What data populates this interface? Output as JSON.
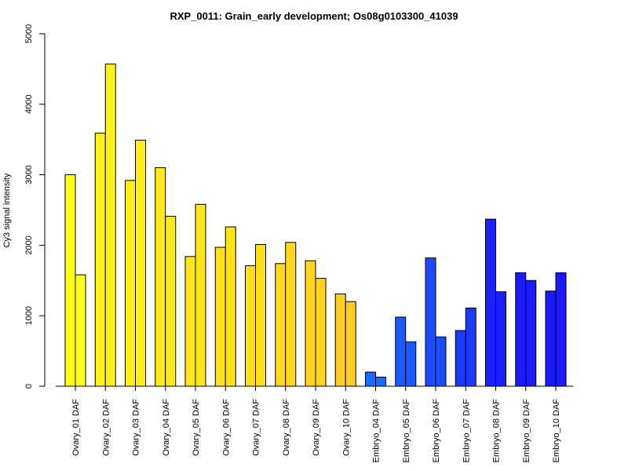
{
  "chart_data": {
    "type": "bar",
    "title": "RXP_0011: Grain_early development; Os08g0103300_41039",
    "ylabel": "Cy3 signal intensity",
    "xlabel": "",
    "ylim": [
      0,
      5000
    ],
    "yticks": [
      0,
      1000,
      2000,
      3000,
      4000,
      5000
    ],
    "grid": false,
    "categories": [
      "Ovary_01 DAF",
      "Ovary_02 DAF",
      "Ovary_03 DAF",
      "Ovary_04 DAF",
      "Ovary_05 DAF",
      "Ovary_06 DAF",
      "Ovary_07 DAF",
      "Ovary_08 DAF",
      "Ovary_09 DAF",
      "Ovary_10 DAF",
      "Embryo_04 DAF",
      "Embryo_05 DAF",
      "Embryo_06 DAF",
      "Embryo_07 DAF",
      "Embryo_08 DAF",
      "Embryo_09 DAF",
      "Embryo_10 DAF"
    ],
    "series": [
      {
        "values": [
          3000,
          3590,
          2920,
          3100,
          1840,
          1970,
          1710,
          1740,
          1780,
          1310,
          200,
          980,
          1820,
          790,
          2370,
          1610,
          1350
        ]
      },
      {
        "values": [
          1580,
          4570,
          3490,
          2410,
          2580,
          2260,
          2010,
          2040,
          1530,
          1200,
          130,
          630,
          700,
          1110,
          1340,
          1500,
          1610
        ]
      }
    ],
    "category_colors": [
      "#ffff1a",
      "#fff21a",
      "#ffee1a",
      "#ffea1a",
      "#ffe61a",
      "#ffe21a",
      "#ffde1a",
      "#ffd91a",
      "#ffd41a",
      "#ffcc22",
      "#1a6bff",
      "#1a5bff",
      "#1a4bff",
      "#1a3bff",
      "#1a22ff",
      "#1a1aff",
      "#1a1aff"
    ]
  }
}
